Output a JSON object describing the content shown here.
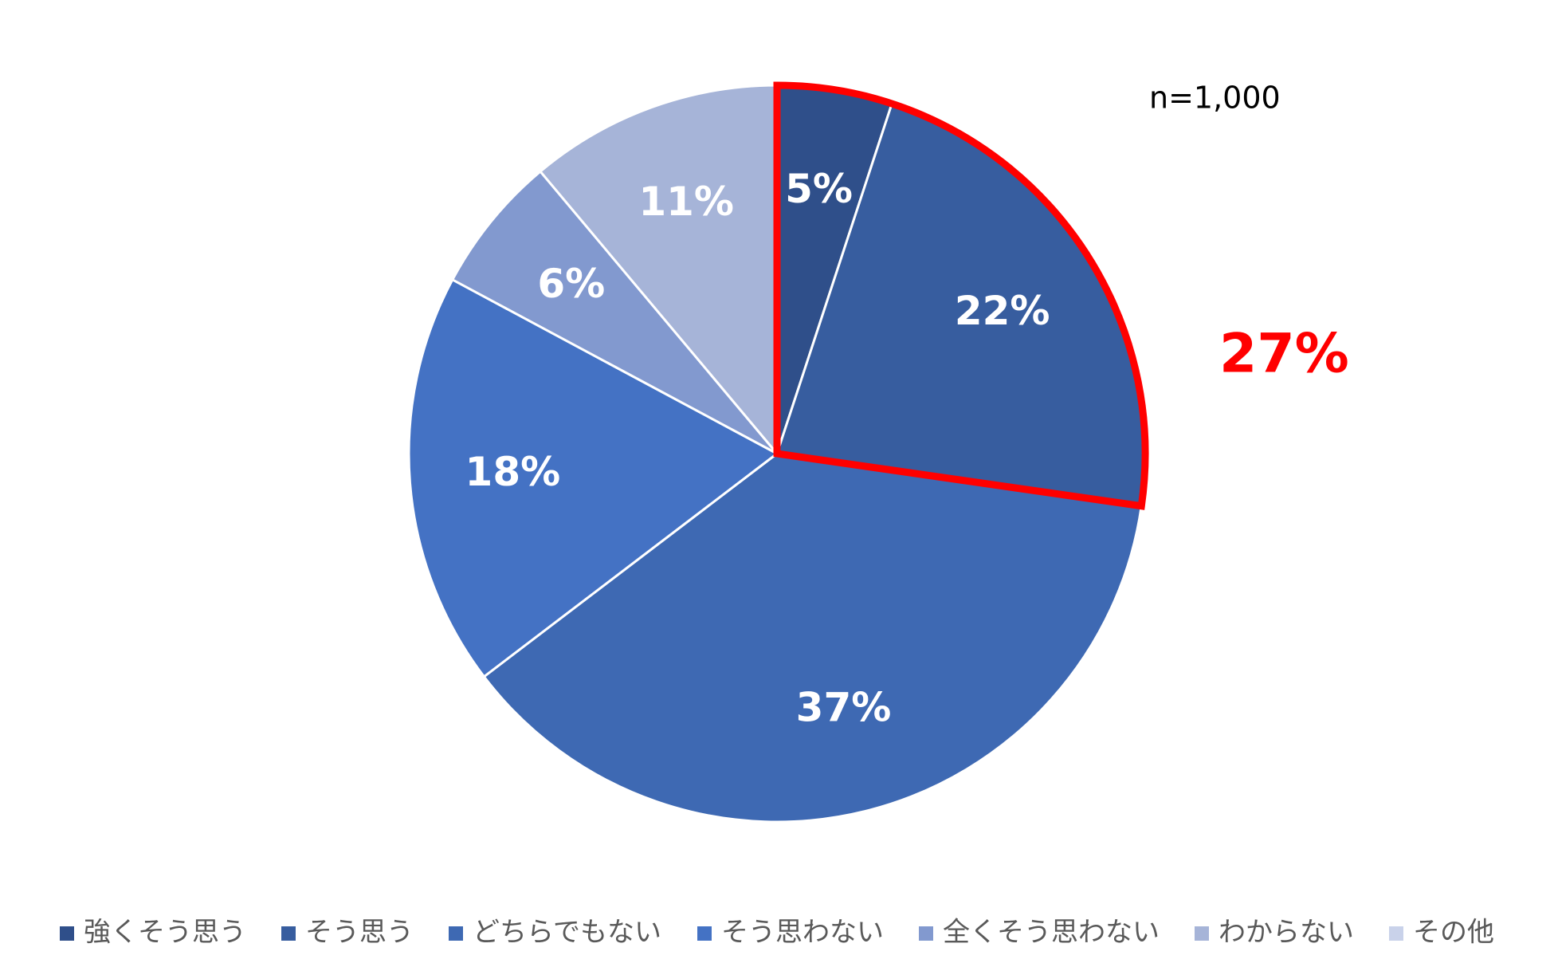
{
  "chart_data": {
    "type": "pie",
    "sample_size_label": "n=1,000",
    "categories": [
      "強くそう思う",
      "そう思う",
      "どちらでもない",
      "そう思わない",
      "全くそう思わない",
      "わからない",
      "その他"
    ],
    "values": [
      5,
      22,
      37,
      18,
      6,
      11,
      0
    ],
    "value_labels": [
      "5%",
      "22%",
      "37%",
      "18%",
      "6%",
      "11%",
      ""
    ],
    "colors": [
      "#2f4f8a",
      "#375d9f",
      "#3e69b3",
      "#4472c4",
      "#8299cf",
      "#a6b4d8",
      "#c9d2ea"
    ],
    "highlight": {
      "label": "27%",
      "slices": [
        0,
        1
      ],
      "color": "#ff0000"
    },
    "legend_position": "bottom",
    "start_angle_deg": 0,
    "direction": "clockwise"
  }
}
